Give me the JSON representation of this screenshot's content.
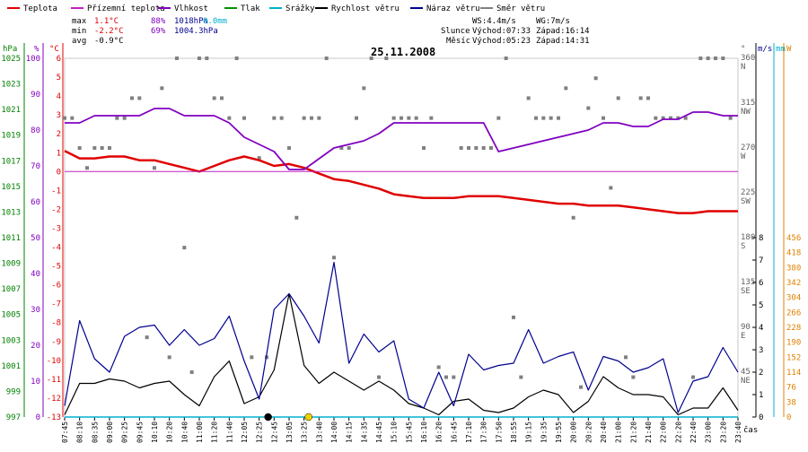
{
  "chart_data": {
    "type": "line",
    "title": "25.11.2008",
    "xlabel": "čas",
    "legend": [
      {
        "label": "Teplota",
        "color": "#e00000"
      },
      {
        "label": "Přízemní teplota",
        "color": "#c020c0"
      },
      {
        "label": "Vlhkost",
        "color": "#8000c0"
      },
      {
        "label": "Tlak",
        "color": "#009000"
      },
      {
        "label": "Srážky",
        "color": "#00b0d0"
      },
      {
        "label": "Rychlost větru",
        "color": "#000000"
      },
      {
        "label": "Náraz větru",
        "color": "#000090"
      },
      {
        "label": "Směr větru",
        "color": "#808080"
      }
    ],
    "stats": {
      "max_label": "max",
      "max_temp": "1.1°C",
      "max_hum": "88%",
      "max_press": "1018hPa",
      "rain": "0.0mm",
      "min_label": "min",
      "min_temp": "-2.2°C",
      "min_hum": "69%",
      "min_press": "1004.3hPa",
      "avg_label": "avg",
      "avg_temp": "-0.9°C"
    },
    "wind_info": {
      "ws": "WS:4.4m/s",
      "wg": "WG:7m/s"
    },
    "sun": {
      "label": "Slunce",
      "rise": "Východ:07:33",
      "set": "Západ:16:14"
    },
    "moon": {
      "label": "Měsíc",
      "rise": "Východ:05:23",
      "set": "Západ:14:31"
    },
    "axes": {
      "hpa": {
        "unit": "hPa",
        "ticks": [
          "1025",
          "1023",
          "1021",
          "1019",
          "1017",
          "1015",
          "1013",
          "1011",
          "1009",
          "1007",
          "1005",
          "1003",
          "1001",
          "999",
          "997"
        ]
      },
      "pct": {
        "unit": "%",
        "ticks": [
          "100",
          "90",
          "80",
          "70",
          "60",
          "50",
          "40",
          "30",
          "20",
          "10",
          "0"
        ]
      },
      "temp": {
        "unit": "°C",
        "range": [
          -13,
          6
        ],
        "ticks": [
          "6",
          "5",
          "4",
          "3",
          "2",
          "1",
          "0",
          "-1",
          "-2",
          "-3",
          "-4",
          "-5",
          "-6",
          "-7",
          "-8",
          "-9",
          "-10",
          "-11",
          "-12",
          "-13"
        ]
      },
      "dir": {
        "unit": "°",
        "ticks": [
          {
            "deg": "360",
            "name": "N"
          },
          {
            "deg": "315",
            "name": "NW"
          },
          {
            "deg": "270",
            "name": "W"
          },
          {
            "deg": "225",
            "name": "SW"
          },
          {
            "deg": "180",
            "name": "S"
          },
          {
            "deg": "135",
            "name": "SE"
          },
          {
            "deg": "90",
            "name": "E"
          },
          {
            "deg": "45",
            "name": "NE"
          }
        ]
      },
      "ms": {
        "unit": "m/s",
        "ticks": [
          "8",
          "7",
          "6",
          "5",
          "4",
          "3",
          "2",
          "1",
          "0"
        ]
      },
      "mm": {
        "unit": "mm"
      },
      "wm2": {
        "unit": "W",
        "ticks": [
          "456",
          "418",
          "380",
          "342",
          "304",
          "266",
          "228",
          "190",
          "152",
          "114",
          "76",
          "38",
          "0"
        ]
      },
      "x_ticks": [
        "07:45",
        "08:10",
        "08:35",
        "09:00",
        "09:25",
        "09:45",
        "10:10",
        "10:20",
        "10:40",
        "11:00",
        "11:20",
        "11:40",
        "12:05",
        "12:25",
        "12:45",
        "13:05",
        "13:25",
        "13:40",
        "14:00",
        "14:15",
        "14:35",
        "14:45",
        "15:10",
        "15:45",
        "16:10",
        "16:20",
        "16:45",
        "17:10",
        "17:30",
        "17:50",
        "18:55",
        "19:15",
        "19:35",
        "19:55",
        "20:00",
        "20:20",
        "20:40",
        "21:00",
        "21:20",
        "21:40",
        "22:00",
        "22:20",
        "22:40",
        "23:00",
        "23:20",
        "23:40"
      ]
    },
    "x_range": [
      0,
      45
    ],
    "series": [
      {
        "name": "Teplota",
        "unit": "°C",
        "x": [
          0,
          1,
          2,
          3,
          4,
          5,
          6,
          7,
          8,
          9,
          10,
          11,
          12,
          13,
          14,
          15,
          16,
          17,
          18,
          19,
          20,
          21,
          22,
          23,
          24,
          25,
          26,
          27,
          28,
          29,
          30,
          31,
          32,
          33,
          34,
          35,
          36,
          37,
          38,
          39,
          40,
          41,
          42,
          43,
          44,
          45
        ],
        "values": [
          1.1,
          0.7,
          0.7,
          0.8,
          0.8,
          0.6,
          0.6,
          0.4,
          0.2,
          0,
          0.3,
          0.6,
          0.8,
          0.6,
          0.3,
          0.4,
          0.2,
          -0.1,
          -0.4,
          -0.5,
          -0.7,
          -0.9,
          -1.2,
          -1.3,
          -1.4,
          -1.4,
          -1.4,
          -1.3,
          -1.3,
          -1.3,
          -1.4,
          -1.5,
          -1.6,
          -1.7,
          -1.7,
          -1.8,
          -1.8,
          -1.8,
          -1.9,
          -2.0,
          -2.1,
          -2.2,
          -2.2,
          -2.1,
          -2.1,
          -2.1
        ]
      },
      {
        "name": "Přízemní teplota",
        "unit": "°C",
        "x": [
          0,
          45
        ],
        "values": [
          0,
          0
        ]
      },
      {
        "name": "Vlhkost",
        "unit": "%",
        "x": [
          0,
          1,
          2,
          3,
          4,
          5,
          6,
          7,
          8,
          9,
          10,
          11,
          12,
          13,
          14,
          15,
          16,
          17,
          18,
          19,
          20,
          21,
          22,
          23,
          24,
          25,
          26,
          27,
          28,
          29,
          30,
          31,
          32,
          33,
          34,
          35,
          36,
          37,
          38,
          39,
          40,
          41,
          42,
          43,
          44,
          45
        ],
        "values": [
          82,
          82,
          84,
          84,
          84,
          84,
          86,
          86,
          84,
          84,
          84,
          82,
          78,
          76,
          74,
          69,
          69,
          72,
          75,
          76,
          77,
          79,
          82,
          82,
          82,
          82,
          82,
          82,
          82,
          74,
          75,
          76,
          77,
          78,
          79,
          80,
          82,
          82,
          81,
          81,
          83,
          83,
          85,
          85,
          84,
          84
        ]
      },
      {
        "name": "Rychlost větru",
        "unit": "m/s",
        "x": [
          0,
          1,
          2,
          3,
          4,
          5,
          6,
          7,
          8,
          9,
          10,
          11,
          12,
          13,
          14,
          15,
          16,
          17,
          18,
          19,
          20,
          21,
          22,
          23,
          24,
          25,
          26,
          27,
          28,
          29,
          30,
          31,
          32,
          33,
          34,
          35,
          36,
          37,
          38,
          39,
          40,
          41,
          42,
          43,
          44,
          45
        ],
        "values": [
          0.1,
          1.5,
          1.5,
          1.7,
          1.6,
          1.3,
          1.5,
          1.6,
          1.0,
          0.5,
          1.8,
          2.5,
          0.6,
          0.9,
          2.1,
          5.5,
          2.3,
          1.5,
          2.0,
          1.6,
          1.2,
          1.6,
          1.2,
          0.6,
          0.4,
          0.1,
          0.7,
          0.8,
          0.3,
          0.2,
          0.4,
          0.9,
          1.2,
          1.0,
          0.2,
          0.7,
          1.8,
          1.3,
          1.0,
          1.0,
          0.9,
          0.1,
          0.4,
          0.4,
          1.3,
          0.3
        ]
      },
      {
        "name": "Náraz větru",
        "unit": "m/s",
        "x": [
          0,
          1,
          2,
          3,
          4,
          5,
          6,
          7,
          8,
          9,
          10,
          11,
          12,
          13,
          14,
          15,
          16,
          17,
          18,
          19,
          20,
          21,
          22,
          23,
          24,
          25,
          26,
          27,
          28,
          29,
          30,
          31,
          32,
          33,
          34,
          35,
          36,
          37,
          38,
          39,
          40,
          41,
          42,
          43,
          44,
          45
        ],
        "values": [
          0.5,
          4.3,
          2.6,
          2.0,
          3.6,
          4.0,
          4.1,
          3.2,
          3.9,
          3.2,
          3.5,
          4.5,
          2.5,
          0.8,
          4.8,
          5.5,
          4.5,
          3.3,
          6.9,
          2.4,
          3.7,
          2.9,
          3.4,
          0.8,
          0.4,
          2.0,
          0.5,
          2.8,
          2.1,
          2.3,
          2.4,
          3.9,
          2.4,
          2.7,
          2.9,
          1.2,
          2.7,
          2.5,
          2.0,
          2.2,
          2.6,
          0.2,
          1.6,
          1.8,
          3.1,
          2.0
        ]
      },
      {
        "name": "Srážky",
        "unit": "mm",
        "x": [
          0,
          45
        ],
        "values": [
          0,
          0
        ]
      }
    ],
    "wind_direction": {
      "x": [
        0,
        0.5,
        1,
        1.5,
        2,
        2.5,
        3,
        3.5,
        4,
        4.5,
        5,
        5.5,
        6,
        6.5,
        7,
        7.5,
        8,
        8.5,
        9,
        9.5,
        10,
        10.5,
        11,
        11.5,
        12,
        12.5,
        13,
        13.5,
        14,
        14.5,
        15,
        15.5,
        16,
        16.5,
        17,
        17.5,
        18,
        18.5,
        19,
        19.5,
        20,
        20.5,
        21,
        21.5,
        22,
        22.5,
        23,
        23.5,
        24,
        24.5,
        25,
        25.5,
        26,
        26.5,
        27,
        27.5,
        28,
        28.5,
        29,
        29.5,
        30,
        30.5,
        31,
        31.5,
        32,
        32.5,
        33,
        33.5,
        34,
        34.5,
        35,
        35.5,
        36,
        36.5,
        37,
        37.5,
        38,
        38.5,
        39,
        39.5,
        40,
        40.5,
        41,
        41.5,
        42,
        42.5,
        43,
        43.5,
        44,
        44.5
      ],
      "degrees": [
        300,
        300,
        270,
        250,
        270,
        270,
        270,
        300,
        300,
        320,
        320,
        80,
        250,
        330,
        60,
        360,
        170,
        45,
        360,
        360,
        320,
        320,
        300,
        360,
        300,
        60,
        260,
        60,
        300,
        300,
        270,
        200,
        300,
        300,
        300,
        360,
        160,
        270,
        270,
        300,
        330,
        360,
        40,
        360,
        300,
        300,
        300,
        300,
        270,
        300,
        50,
        40,
        40,
        270,
        270,
        270,
        270,
        270,
        300,
        360,
        100,
        40,
        320,
        300,
        300,
        300,
        300,
        330,
        200,
        30,
        310,
        340,
        300,
        230,
        320,
        60,
        40,
        320,
        320,
        300,
        300,
        300,
        300,
        300,
        40,
        360,
        360,
        360,
        360,
        300
      ]
    },
    "markers": [
      {
        "x": 13.6,
        "value": 0,
        "color": "#000000",
        "label": "moon"
      },
      {
        "x": 16.3,
        "value": 0,
        "color": "#f0d000",
        "label": "sun"
      }
    ]
  }
}
